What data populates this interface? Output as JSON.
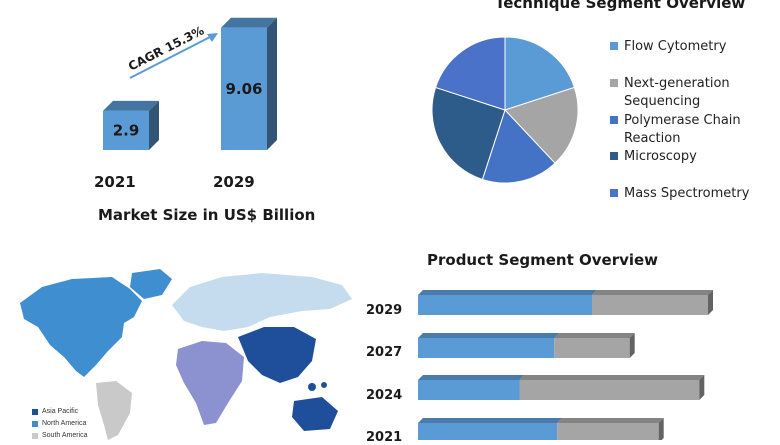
{
  "chart_data": [
    {
      "type": "bar",
      "title": "Market Size in US$ Billion",
      "categories": [
        "2021",
        "2029"
      ],
      "values": [
        2.9,
        9.06
      ],
      "annotation": "CAGR 15.3%",
      "color": "#5b9bd5",
      "ylim": [
        0,
        10
      ]
    },
    {
      "type": "pie",
      "title": "Technique Segment Overview",
      "labels": [
        "Flow Cytometry",
        "Next-generation Sequencing",
        "Polymerase Chain Reaction",
        "Microscopy",
        "Mass Spectrometry"
      ],
      "values": [
        20,
        18,
        17,
        25,
        20
      ],
      "colors": [
        "#5b9bd5",
        "#a5a5a5",
        "#4472c4",
        "#2e5c8a",
        "#4a72c8"
      ]
    },
    {
      "type": "bar",
      "orientation": "horizontal",
      "stacked": true,
      "title": "Product Segment Overview",
      "categories": [
        "2029",
        "2027",
        "2024",
        "2021"
      ],
      "series": [
        {
          "values": [
            60,
            47,
            35,
            48
          ],
          "color": "#5b9bd5"
        },
        {
          "values": [
            40,
            26,
            62,
            35
          ],
          "color": "#a5a5a5"
        }
      ]
    }
  ],
  "map": {
    "legend": [
      {
        "label": "Asia Pacific",
        "color": "#1f4e9a"
      },
      {
        "label": "North America",
        "color": "#3f8fd0"
      },
      {
        "label": "South America",
        "color": "#c9c9c9"
      }
    ],
    "colors": {
      "north_america": "#3f8fd0",
      "south_america": "#c9c9c9",
      "europe": "#c5dcee",
      "africa": "#8c92cf",
      "asia_pacific": "#1f4e9a"
    }
  }
}
